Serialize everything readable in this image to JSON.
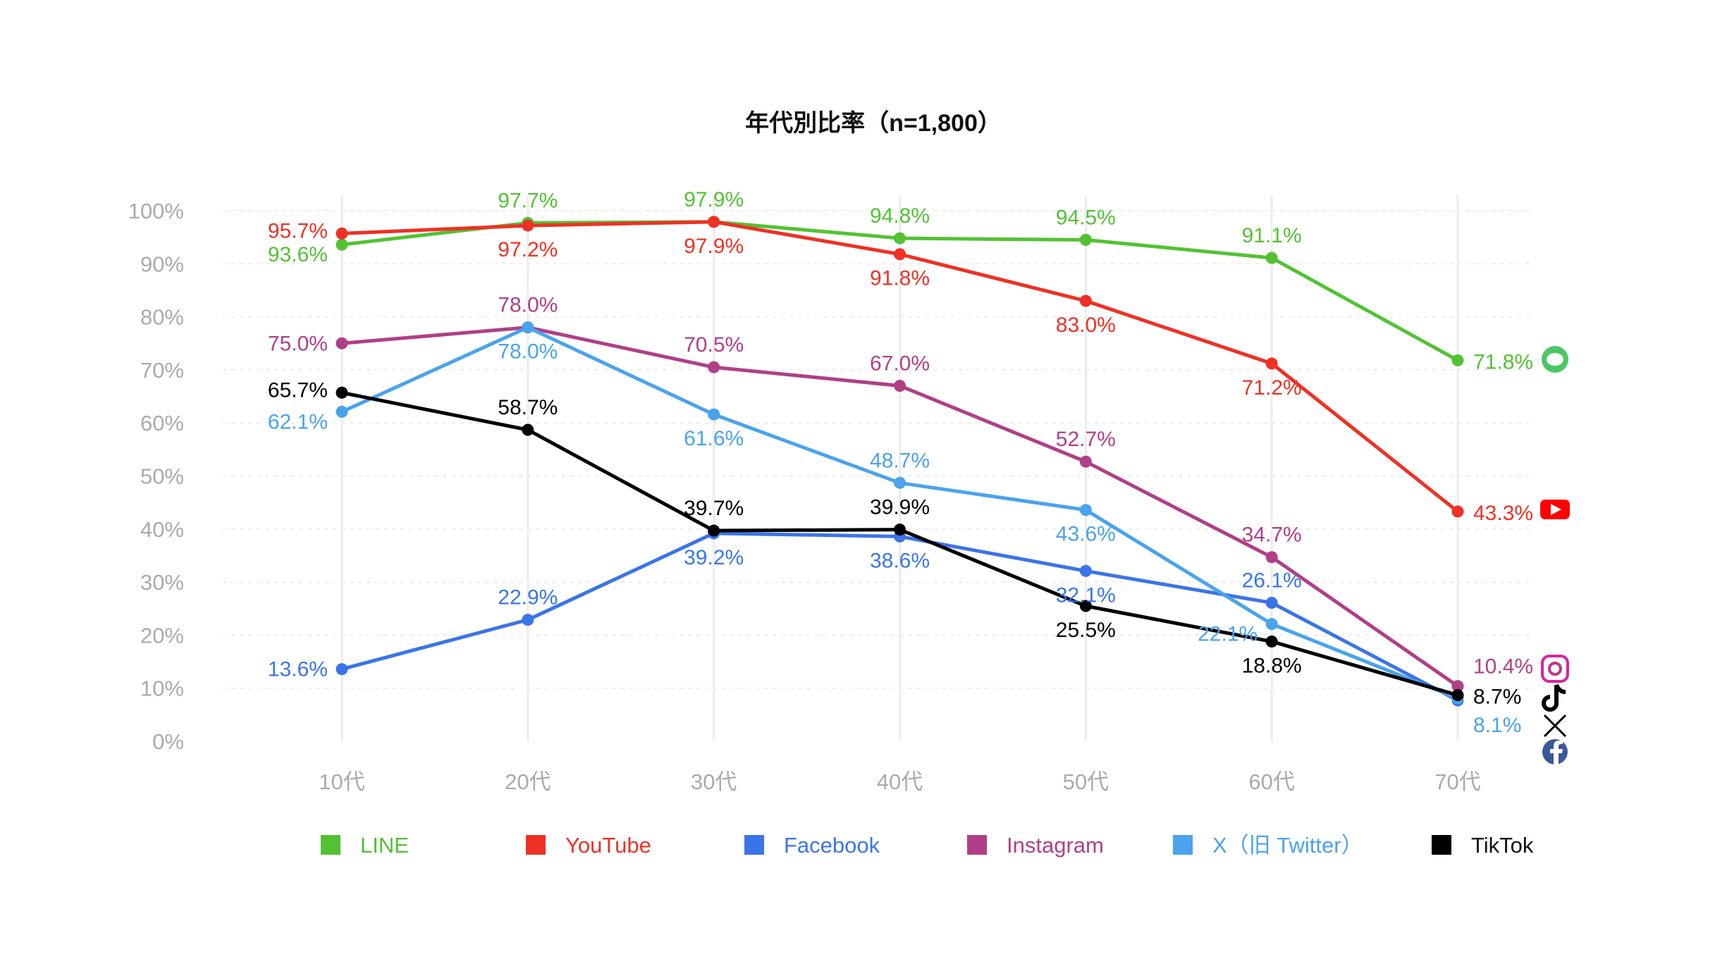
{
  "chart_data": {
    "type": "line",
    "title": "年代別比率（n=1,800）",
    "categories": [
      "10代",
      "20代",
      "30代",
      "40代",
      "50代",
      "60代",
      "70代"
    ],
    "ylim": [
      0,
      100
    ],
    "yticks": [
      "0%",
      "10%",
      "20%",
      "30%",
      "40%",
      "50%",
      "60%",
      "70%",
      "80%",
      "90%",
      "100%"
    ],
    "grid": true,
    "legend_position": "bottom",
    "series": [
      {
        "name": "LINE",
        "color": "#52c234",
        "icon": "line-icon",
        "values": [
          93.6,
          97.7,
          97.9,
          94.8,
          94.5,
          91.1,
          71.8
        ],
        "labels": [
          "93.6%",
          "97.7%",
          "97.9%",
          "94.8%",
          "94.5%",
          "91.1%",
          "71.8%"
        ]
      },
      {
        "name": "YouTube",
        "color": "#ee3124",
        "icon": "youtube-icon",
        "values": [
          95.7,
          97.2,
          97.9,
          91.8,
          83.0,
          71.2,
          43.3
        ],
        "labels": [
          "95.7%",
          "97.2%",
          "97.9%",
          "91.8%",
          "83.0%",
          "71.2%",
          "43.3%"
        ]
      },
      {
        "name": "Facebook",
        "color": "#3b74e8",
        "icon": "facebook-icon",
        "values": [
          13.6,
          22.9,
          39.2,
          38.6,
          32.1,
          26.1,
          7.7
        ],
        "labels": [
          "13.6%",
          "22.9%",
          "39.2%",
          "38.6%",
          "32.1%",
          "26.1%",
          ""
        ]
      },
      {
        "name": "Instagram",
        "color": "#b03f87",
        "icon": "instagram-icon",
        "values": [
          75.0,
          78.0,
          70.5,
          67.0,
          52.7,
          34.7,
          10.4
        ],
        "labels": [
          "75.0%",
          "78.0%",
          "70.5%",
          "67.0%",
          "52.7%",
          "34.7%",
          "10.4%"
        ]
      },
      {
        "name": "X（旧 Twitter）",
        "color": "#4aa3ec",
        "icon": "x-icon",
        "values": [
          62.1,
          78.0,
          61.6,
          48.7,
          43.6,
          22.1,
          8.1
        ],
        "labels": [
          "62.1%",
          "78.0%",
          "61.6%",
          "48.7%",
          "43.6%",
          "22.1%",
          "8.1%"
        ]
      },
      {
        "name": "TikTok",
        "color": "#000000",
        "icon": "tiktok-icon",
        "values": [
          65.7,
          58.7,
          39.7,
          39.9,
          25.5,
          18.8,
          8.7
        ],
        "labels": [
          "65.7%",
          "58.7%",
          "39.7%",
          "39.9%",
          "25.5%",
          "18.8%",
          "8.7%"
        ]
      }
    ]
  }
}
